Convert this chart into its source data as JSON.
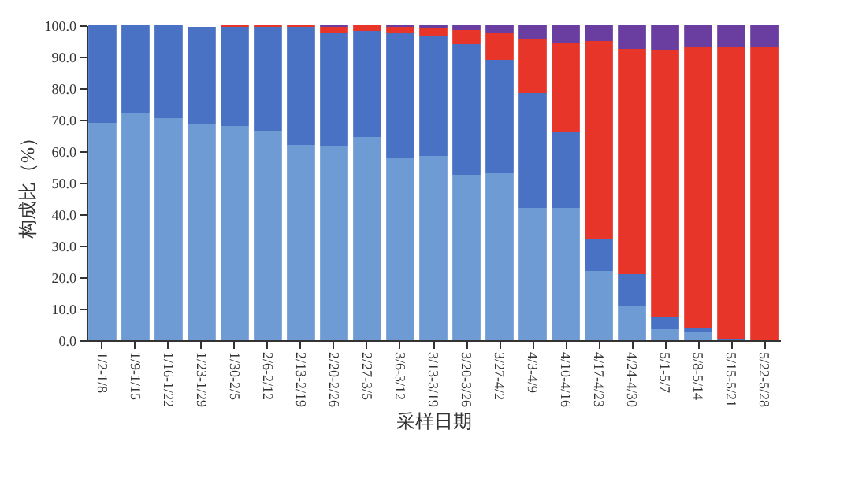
{
  "chart_data": {
    "type": "bar",
    "stacked": true,
    "xlabel": "采样日期",
    "ylabel": "构成比（%）",
    "categories": [
      "1/2-1/8",
      "1/9-1/15",
      "1/16-1/22",
      "1/23-1/29",
      "1/30-2/5",
      "2/6-2/12",
      "2/13-2/19",
      "2/20-2/26",
      "2/27-3/5",
      "3/6-3/12",
      "3/13-3/19",
      "3/20-3/26",
      "3/27-4/2",
      "4/3-4/9",
      "4/10-4/16",
      "4/17-4/23",
      "4/24-4/30",
      "5/1-5/7",
      "5/8-5/14",
      "5/15-5/21",
      "5/22-5/28"
    ],
    "series": [
      {
        "color": "#6f9bd4",
        "values": [
          69,
          72,
          70.5,
          68.5,
          68,
          66.5,
          62,
          61.5,
          64.5,
          58,
          58.5,
          52.5,
          53,
          42,
          42,
          22,
          11,
          3.5,
          2.5,
          0,
          0
        ]
      },
      {
        "color": "#4a72c4",
        "values": [
          31,
          28,
          29.5,
          31,
          31.5,
          33,
          37.5,
          36,
          33.5,
          39.5,
          38,
          41.5,
          36,
          36.5,
          24,
          10,
          10,
          4,
          1.5,
          0.5,
          0
        ]
      },
      {
        "color": "#e8352a",
        "values": [
          0,
          0,
          0,
          0,
          0.5,
          0.5,
          0.5,
          2,
          2,
          2,
          2.5,
          4.5,
          8.5,
          17,
          28.5,
          63,
          71.5,
          84.5,
          89,
          92.5,
          93
        ]
      },
      {
        "color": "#6a3da0",
        "values": [
          0,
          0,
          0,
          0,
          0,
          0,
          0,
          0.5,
          0,
          0.5,
          1,
          1.5,
          2.5,
          4.5,
          5.5,
          5,
          7.5,
          8,
          7,
          7,
          7
        ]
      }
    ],
    "ylim": [
      0,
      100
    ],
    "yticks": [
      {
        "value": 0,
        "label": "0.0"
      },
      {
        "value": 10,
        "label": "10.0"
      },
      {
        "value": 20,
        "label": "20.0"
      },
      {
        "value": 30,
        "label": "30.0"
      },
      {
        "value": 40,
        "label": "40.0"
      },
      {
        "value": 50,
        "label": "50.0"
      },
      {
        "value": 60,
        "label": "60.0"
      },
      {
        "value": 70,
        "label": "70.0"
      },
      {
        "value": 80,
        "label": "80.0"
      },
      {
        "value": 90,
        "label": "90.0"
      },
      {
        "value": 100,
        "label": "100.0"
      }
    ],
    "grid": false
  }
}
